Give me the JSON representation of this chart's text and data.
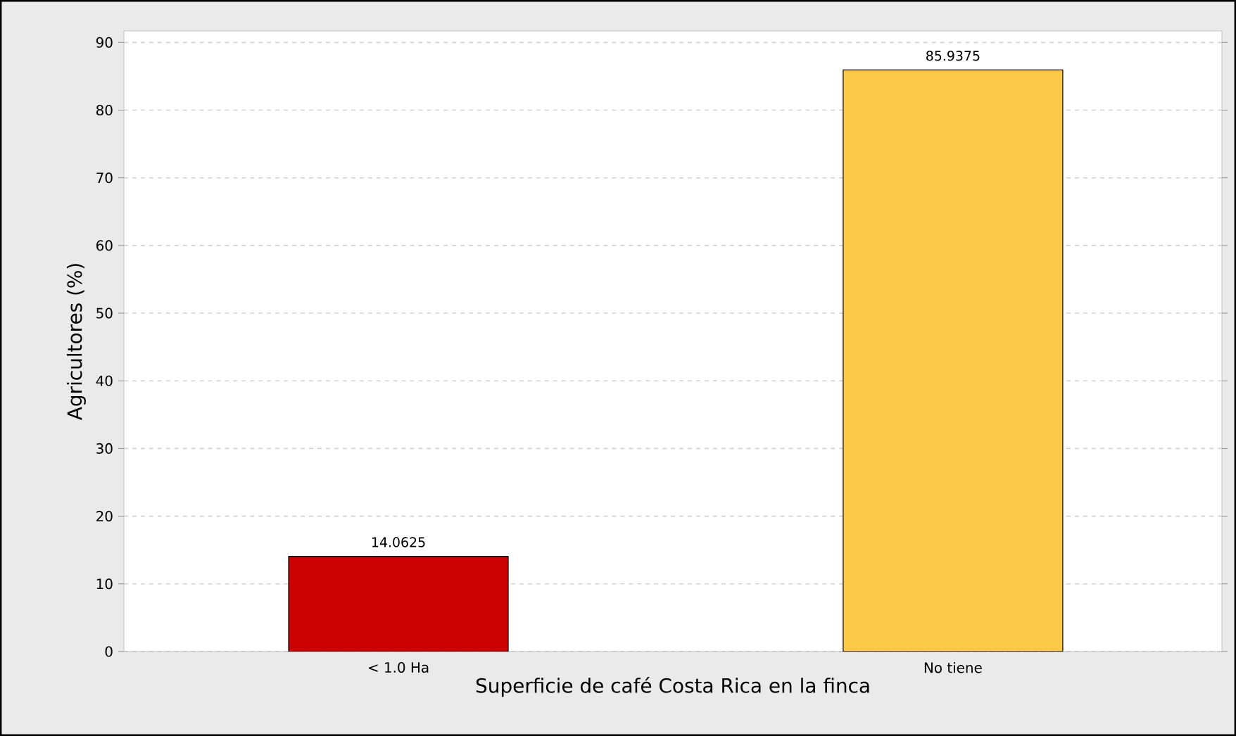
{
  "chart_data": {
    "type": "bar",
    "xlabel": "Superficie de café Costa Rica en la finca",
    "ylabel": "Agricultores (%)",
    "categories": [
      "< 1.0 Ha",
      "No tiene"
    ],
    "values": [
      14.0625,
      85.9375
    ],
    "colors": [
      "#cc0000",
      "#fbc946"
    ],
    "ylim": [
      0,
      91.7
    ],
    "yticks": [
      0,
      10,
      20,
      30,
      40,
      50,
      60,
      70,
      80,
      90
    ],
    "grid": "y",
    "data_labels": true
  }
}
